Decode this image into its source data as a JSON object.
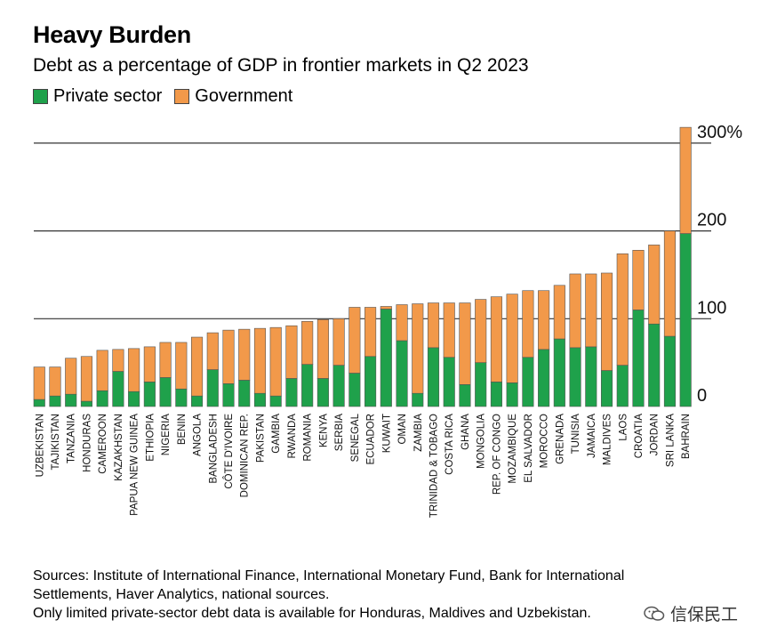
{
  "title": "Heavy Burden",
  "subtitle": "Debt as a percentage of GDP in frontier markets in Q2 2023",
  "legend": {
    "private_label": "Private sector",
    "government_label": "Government"
  },
  "colors": {
    "private": "#1fa14b",
    "government": "#f2994a",
    "grid": "#333333"
  },
  "chart_data": {
    "type": "bar",
    "stacked": true,
    "title": "Heavy Burden",
    "subtitle": "Debt as a percentage of GDP in frontier markets in Q2 2023",
    "categories": [
      "UZBEKISTAN",
      "TAJIKISTAN",
      "TANZANIA",
      "HONDURAS",
      "CAMEROON",
      "KAZAKHSTAN",
      "PAPUA NEW GUINEA",
      "ETHIOPIA",
      "NIGERIA",
      "BENIN",
      "ANGOLA",
      "BANGLADESH",
      "CÔTE D'IVOIRE",
      "DOMINICAN REP.",
      "PAKISTAN",
      "GAMBIA",
      "RWANDA",
      "ROMANIA",
      "KENYA",
      "SERBIA",
      "SENEGAL",
      "ECUADOR",
      "KUWAIT",
      "OMAN",
      "ZAMBIA",
      "TRINIDAD & TOBAGO",
      "COSTA RICA",
      "GHANA",
      "MONGOLIA",
      "REP. OF CONGO",
      "MOZAMBIQUE",
      "EL SALVADOR",
      "MOROCCO",
      "GRENADA",
      "TUNISIA",
      "JAMAICA",
      "MALDIVES",
      "LAOS",
      "CROATIA",
      "JORDAN",
      "SRI LANKA",
      "BAHRAIN"
    ],
    "series": [
      {
        "name": "Private sector",
        "values": [
          8,
          12,
          14,
          6,
          18,
          40,
          17,
          28,
          33,
          20,
          12,
          42,
          26,
          30,
          15,
          12,
          32,
          48,
          32,
          47,
          38,
          57,
          111,
          75,
          15,
          67,
          56,
          25,
          50,
          28,
          27,
          56,
          65,
          77,
          67,
          68,
          41,
          47,
          110,
          94,
          80,
          197
        ]
      },
      {
        "name": "Government",
        "values": [
          37,
          33,
          41,
          51,
          46,
          25,
          49,
          40,
          40,
          53,
          67,
          42,
          61,
          58,
          74,
          78,
          60,
          49,
          67,
          53,
          75,
          56,
          3,
          41,
          102,
          51,
          62,
          93,
          72,
          97,
          101,
          76,
          67,
          61,
          84,
          83,
          111,
          127,
          68,
          90,
          120,
          121
        ]
      }
    ],
    "ylim": [
      0,
      300
    ],
    "yticks": [
      0,
      100,
      200,
      300
    ],
    "ytick_labels": [
      "0",
      "100",
      "200",
      "300%"
    ],
    "xlabel": "",
    "ylabel": "",
    "grid": true,
    "legend_position": "top-left"
  },
  "footer": {
    "line1": "Sources: Institute of International Finance, International Monetary Fund, Bank for International",
    "line2": "Settlements, Haver Analytics, national sources.",
    "line3": "Only limited private-sector debt data is available for Honduras, Maldives and Uzbekistan."
  },
  "watermark": {
    "text": "信保民工",
    "icon": "wechat-icon"
  }
}
